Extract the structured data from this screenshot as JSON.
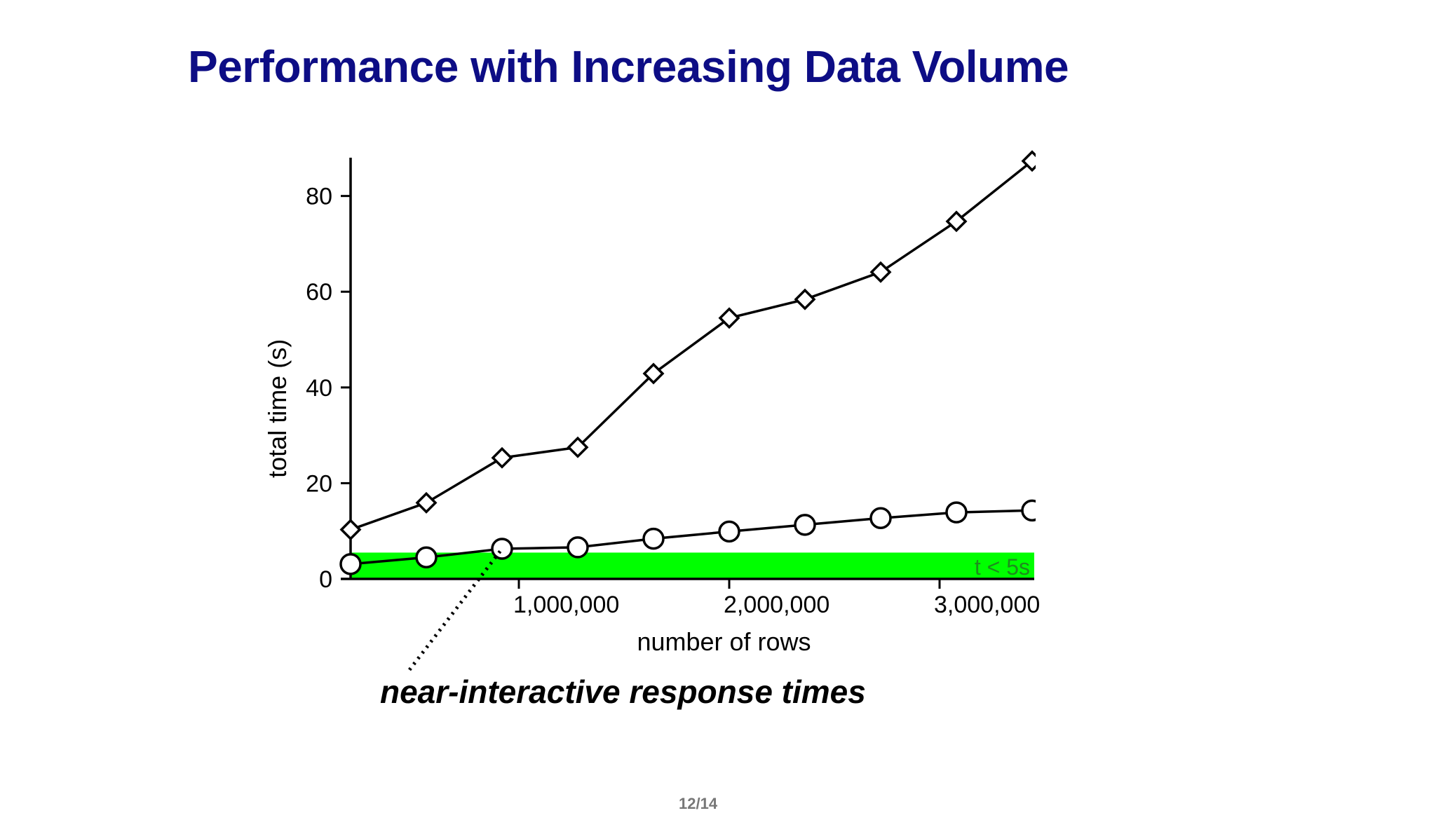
{
  "slide": {
    "title": "Performance with Increasing Data Volume",
    "annotation": "near-interactive response times",
    "page_number": "12/14"
  },
  "chart_data": {
    "type": "line",
    "title": "",
    "xlabel": "number of rows",
    "ylabel": "total time (s)",
    "xlim": [
      200000,
      3450000
    ],
    "ylim": [
      0,
      88
    ],
    "x_ticks": [
      1000000,
      2000000,
      3000000
    ],
    "x_tick_labels": [
      "1,000,000",
      "2,000,000",
      "3,000,000"
    ],
    "y_ticks": [
      0,
      20,
      40,
      60,
      80
    ],
    "y_tick_labels": [
      "0",
      "20",
      "40",
      "60",
      "80"
    ],
    "grid": false,
    "legend": "none",
    "x": [
      200000,
      560000,
      920000,
      1280000,
      1640000,
      2000000,
      2360000,
      2720000,
      3080000,
      3440000
    ],
    "series": [
      {
        "marker": "diamond",
        "values": [
          10.3,
          15.9,
          25.3,
          27.5,
          42.9,
          54.5,
          58.4,
          64.1,
          74.7,
          87.3
        ]
      },
      {
        "marker": "circle",
        "values": [
          3.1,
          4.5,
          6.3,
          6.6,
          8.4,
          9.9,
          11.3,
          12.7,
          13.9,
          14.3
        ]
      }
    ],
    "threshold_band": {
      "label": "t < 5s",
      "from": 0,
      "to": 5.5,
      "color": "#00ff00"
    },
    "annotation_pointer": {
      "from": [
        480000,
        -19
      ],
      "to": [
        920000,
        6.3
      ]
    }
  }
}
